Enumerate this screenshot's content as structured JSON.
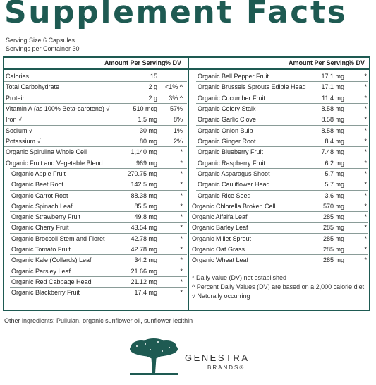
{
  "title": "Supplement Facts",
  "serving_size": "Serving Size 6 Capsules",
  "servings_per_container": "Servings per Container 30",
  "left_table": {
    "header_amount": "Amount Per Serving",
    "header_dv": "% DV",
    "rows": [
      {
        "name": "Calories",
        "amount": "15",
        "dv": ""
      },
      {
        "name": "Total Carbohydrate",
        "amount": "2 g",
        "dv": "<1% ^"
      },
      {
        "name": "Protein",
        "amount": "2 g",
        "dv": "3% ^"
      },
      {
        "name": "Vitamin A (as 100% Beta-carotene) √",
        "amount": "510 mcg",
        "dv": "57%"
      },
      {
        "name": "Iron √",
        "amount": "1.5 mg",
        "dv": "8%"
      },
      {
        "name": "Sodium √",
        "amount": "30 mg",
        "dv": "1%"
      },
      {
        "name": "Potassium √",
        "amount": "80 mg",
        "dv": "2%"
      },
      {
        "name": "Organic Spirulina Whole Cell",
        "amount": "1,140 mg",
        "dv": "*"
      },
      {
        "name": "Organic Fruit and Vegetable Blend",
        "amount": "969 mg",
        "dv": "*"
      },
      {
        "name": "Organic Apple Fruit",
        "amount": "270.75 mg",
        "dv": "*",
        "indent": true
      },
      {
        "name": "Organic Beet Root",
        "amount": "142.5 mg",
        "dv": "*",
        "indent": true
      },
      {
        "name": "Organic Carrot Root",
        "amount": "88.38 mg",
        "dv": "*",
        "indent": true
      },
      {
        "name": "Organic Spinach Leaf",
        "amount": "85.5 mg",
        "dv": "*",
        "indent": true
      },
      {
        "name": "Organic Strawberry Fruit",
        "amount": "49.8 mg",
        "dv": "*",
        "indent": true
      },
      {
        "name": "Organic Cherry Fruit",
        "amount": "43.54 mg",
        "dv": "*",
        "indent": true
      },
      {
        "name": "Organic Broccoli Stem and Floret",
        "amount": "42.78 mg",
        "dv": "*",
        "indent": true
      },
      {
        "name": "Organic Tomato Fruit",
        "amount": "42.78 mg",
        "dv": "*",
        "indent": true
      },
      {
        "name": "Organic Kale (Collards) Leaf",
        "amount": "34.2 mg",
        "dv": "*",
        "indent": true
      },
      {
        "name": "Organic Parsley Leaf",
        "amount": "21.66 mg",
        "dv": "*",
        "indent": true
      },
      {
        "name": "Organic Red Cabbage Head",
        "amount": "21.12 mg",
        "dv": "*",
        "indent": true
      },
      {
        "name": "Organic Blackberry Fruit",
        "amount": "17.4 mg",
        "dv": "*",
        "indent": true
      }
    ]
  },
  "right_table": {
    "header_amount": "Amount Per Serving",
    "header_dv": "% DV",
    "rows": [
      {
        "name": "Organic Bell Pepper Fruit",
        "amount": "17.1 mg",
        "dv": "*",
        "indent": true
      },
      {
        "name": "Organic Brussels Sprouts Edible Head",
        "amount": "17.1 mg",
        "dv": "*",
        "indent": true
      },
      {
        "name": "Organic Cucumber Fruit",
        "amount": "11.4 mg",
        "dv": "*",
        "indent": true
      },
      {
        "name": "Organic Celery Stalk",
        "amount": "8.58 mg",
        "dv": "*",
        "indent": true
      },
      {
        "name": "Organic Garlic Clove",
        "amount": "8.58 mg",
        "dv": "*",
        "indent": true
      },
      {
        "name": "Organic Onion Bulb",
        "amount": "8.58 mg",
        "dv": "*",
        "indent": true
      },
      {
        "name": "Organic Ginger Root",
        "amount": "8.4 mg",
        "dv": "*",
        "indent": true
      },
      {
        "name": "Organic Blueberry Fruit",
        "amount": "7.48 mg",
        "dv": "*",
        "indent": true
      },
      {
        "name": "Organic Raspberry Fruit",
        "amount": "6.2 mg",
        "dv": "*",
        "indent": true
      },
      {
        "name": "Organic Asparagus Shoot",
        "amount": "5.7 mg",
        "dv": "*",
        "indent": true
      },
      {
        "name": "Organic Cauliflower Head",
        "amount": "5.7 mg",
        "dv": "*",
        "indent": true
      },
      {
        "name": "Organic Rice Seed",
        "amount": "3.6 mg",
        "dv": "*",
        "indent": true
      },
      {
        "name": "Organic Chlorella Broken Cell",
        "amount": "570 mg",
        "dv": "*"
      },
      {
        "name": "Organic Alfalfa Leaf",
        "amount": "285 mg",
        "dv": "*"
      },
      {
        "name": "Organic Barley Leaf",
        "amount": "285 mg",
        "dv": "*"
      },
      {
        "name": "Organic Millet Sprout",
        "amount": "285 mg",
        "dv": "*"
      },
      {
        "name": "Organic Oat Grass",
        "amount": "285 mg",
        "dv": "*"
      },
      {
        "name": "Organic Wheat Leaf",
        "amount": "285 mg",
        "dv": "*"
      }
    ]
  },
  "footnotes": [
    "*  Daily value (DV) not established",
    "^  Percent Daily Values (DV) are based on a 2,000 calorie diet",
    "√  Naturally occurring"
  ],
  "other_ingredients": "Other ingredients: Pullulan, organic sunflower oil, sunflower lecithin",
  "brand": {
    "name": "GENESTRA",
    "sub": "BRANDS®",
    "logo_icon": "tree-icon",
    "color": "#1e5a52"
  }
}
